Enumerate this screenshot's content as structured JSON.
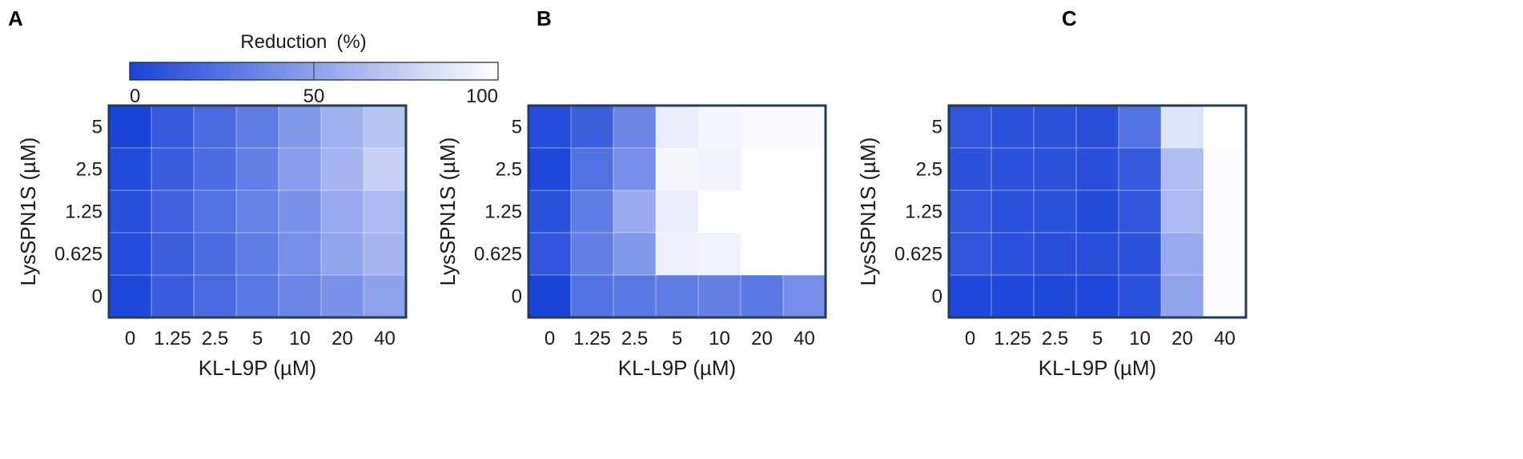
{
  "colorbar": {
    "title": "Reduction (%)",
    "ticks": [
      "0",
      "50",
      "100"
    ],
    "tick_values": [
      0,
      50,
      100
    ],
    "range": [
      0,
      100
    ],
    "color_low": "#1a43d8",
    "color_high": "#ffffff"
  },
  "chart_data": [
    {
      "type": "heatmap",
      "panel": "A",
      "xlabel": "KL-L9P (µM)",
      "ylabel": "LysSPN1S (µM)",
      "x_categories": [
        "0",
        "1.25",
        "2.5",
        "5",
        "10",
        "20",
        "40"
      ],
      "y_categories": [
        "5",
        "2.5",
        "1.25",
        "0.625",
        "0"
      ],
      "values": [
        [
          0,
          12,
          20,
          30,
          45,
          58,
          68
        ],
        [
          4,
          14,
          22,
          32,
          48,
          60,
          75
        ],
        [
          6,
          16,
          24,
          33,
          42,
          55,
          62
        ],
        [
          5,
          15,
          22,
          30,
          40,
          52,
          60
        ],
        [
          2,
          14,
          20,
          28,
          35,
          42,
          50
        ]
      ],
      "zlim": [
        0,
        100
      ]
    },
    {
      "type": "heatmap",
      "panel": "B",
      "xlabel": "KL-L9P (µM)",
      "ylabel": "LysSPN1S (µM)",
      "x_categories": [
        "0",
        "1.25",
        "2.5",
        "5",
        "10",
        "20",
        "40"
      ],
      "y_categories": [
        "5",
        "2.5",
        "1.25",
        "0.625",
        "0"
      ],
      "values": [
        [
          5,
          15,
          35,
          90,
          95,
          97,
          97
        ],
        [
          2,
          25,
          40,
          96,
          94,
          99,
          99
        ],
        [
          8,
          30,
          55,
          90,
          100,
          100,
          100
        ],
        [
          10,
          32,
          45,
          92,
          93,
          100,
          100
        ],
        [
          0,
          25,
          28,
          30,
          32,
          28,
          40
        ]
      ],
      "zlim": [
        0,
        100
      ]
    },
    {
      "type": "heatmap",
      "panel": "C",
      "xlabel": "KL-L9P (µM)",
      "ylabel": "LysSPN1S (µM)",
      "x_categories": [
        "0",
        "1.25",
        "2.5",
        "5",
        "10",
        "20",
        "40"
      ],
      "y_categories": [
        "5",
        "2.5",
        "1.25",
        "0.625",
        "0"
      ],
      "values": [
        [
          10,
          8,
          8,
          7,
          25,
          85,
          100
        ],
        [
          8,
          8,
          8,
          7,
          12,
          65,
          98
        ],
        [
          10,
          8,
          8,
          4,
          10,
          62,
          98
        ],
        [
          10,
          8,
          6,
          6,
          8,
          55,
          98
        ],
        [
          2,
          2,
          2,
          2,
          8,
          52,
          98
        ]
      ],
      "zlim": [
        0,
        100
      ]
    }
  ]
}
